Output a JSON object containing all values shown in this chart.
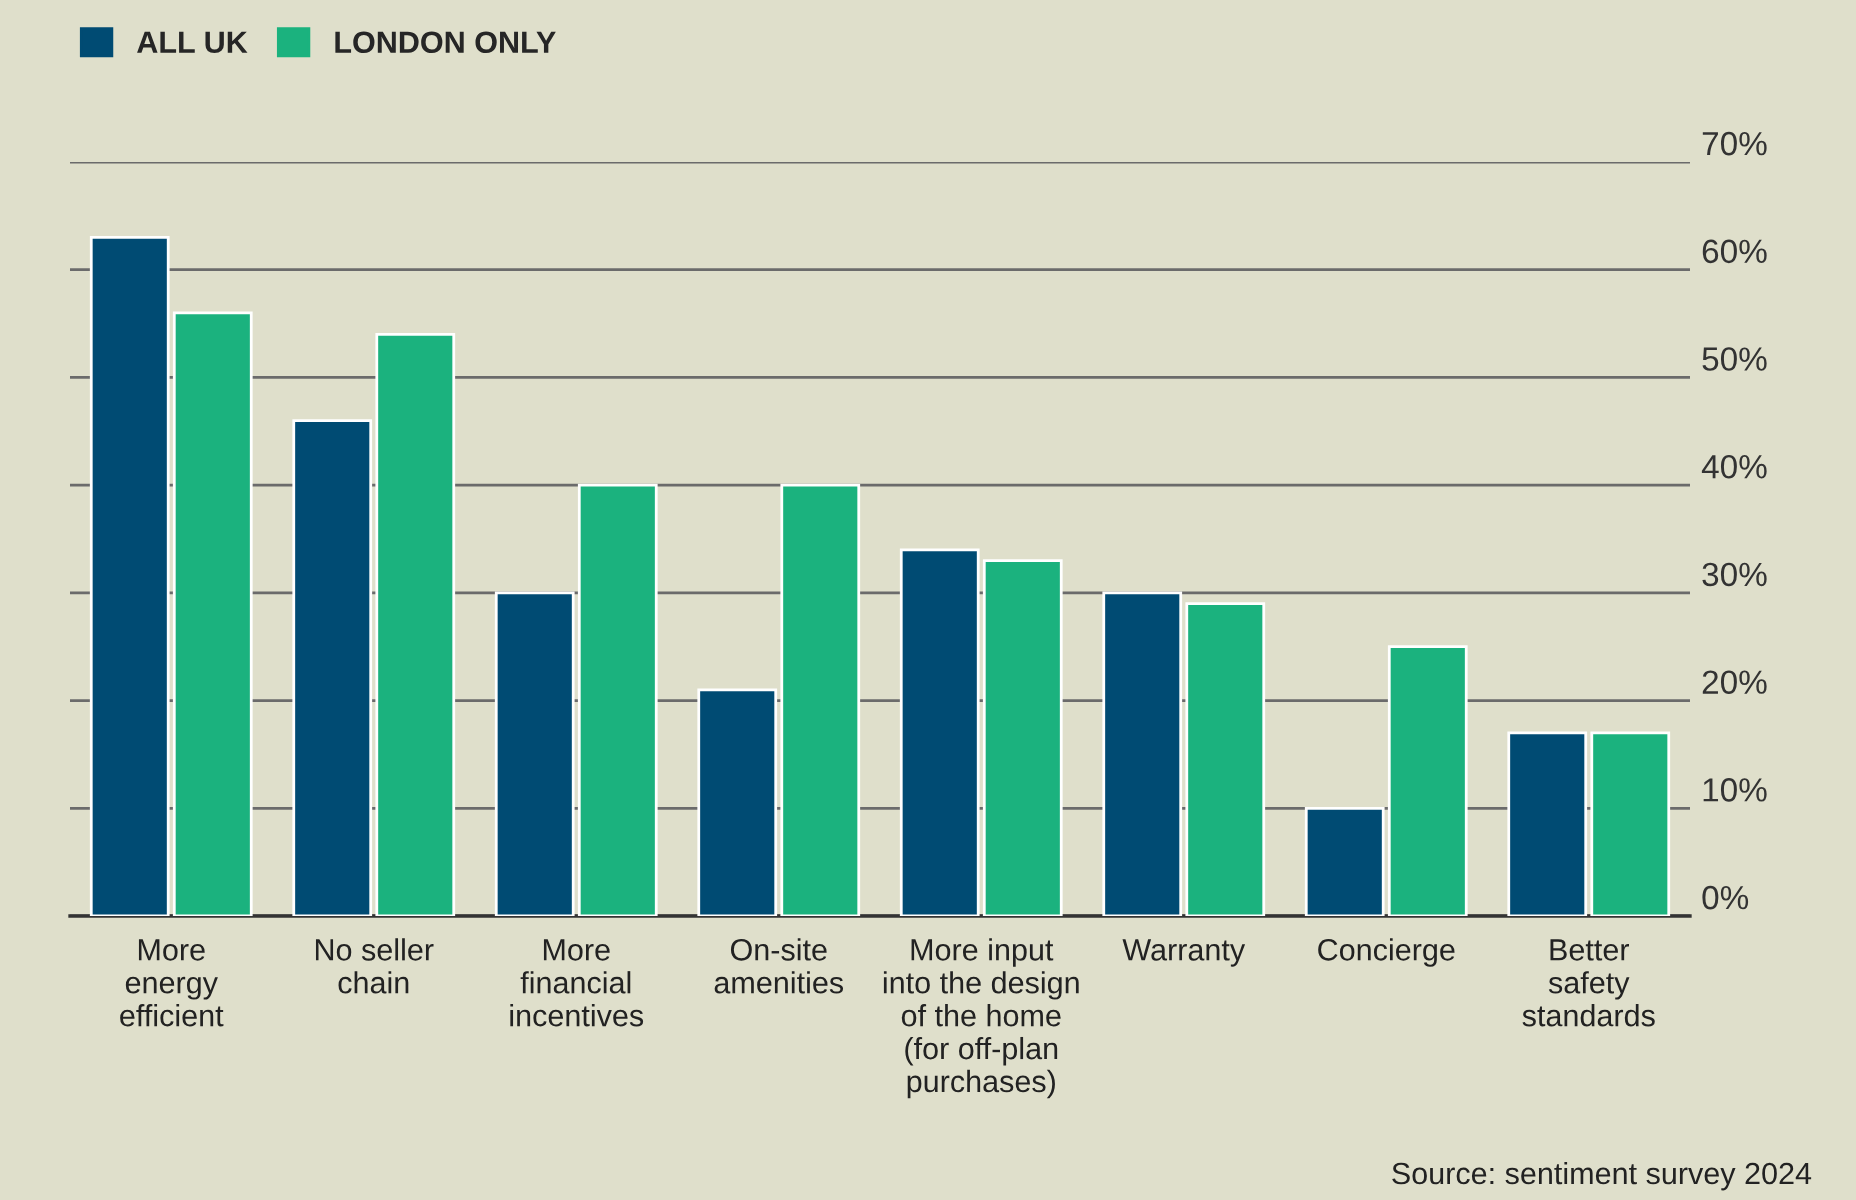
{
  "chart_data": {
    "type": "bar",
    "categories": [
      "More\nenergy\nefficient",
      "No seller\nchain",
      "More\nfinancial\nincentives",
      "On-site\namenities",
      "More input\ninto the design\nof the home\n(for off-plan\npurchases)",
      "Warranty",
      "Concierge",
      "Better\nsafety\nstandards"
    ],
    "series": [
      {
        "name": "ALL UK",
        "color": "#004b73",
        "values": [
          63,
          46,
          30,
          21,
          34,
          30,
          10,
          17
        ]
      },
      {
        "name": "LONDON ONLY",
        "color": "#1bb27e",
        "values": [
          56,
          54,
          40,
          40,
          33,
          29,
          25,
          17
        ]
      }
    ],
    "ylim": [
      0,
      70
    ],
    "yticks": [
      {
        "value": 0,
        "label": "0%"
      },
      {
        "value": 10,
        "label": "10%"
      },
      {
        "value": 20,
        "label": "20%"
      },
      {
        "value": 30,
        "label": "30%"
      },
      {
        "value": 40,
        "label": "40%"
      },
      {
        "value": 50,
        "label": "50%"
      },
      {
        "value": 60,
        "label": "60%"
      },
      {
        "value": 70,
        "label": "70%"
      }
    ],
    "grid": "y",
    "legend": "top left",
    "annotations": [
      "Source: sentiment survey 2024"
    ]
  }
}
